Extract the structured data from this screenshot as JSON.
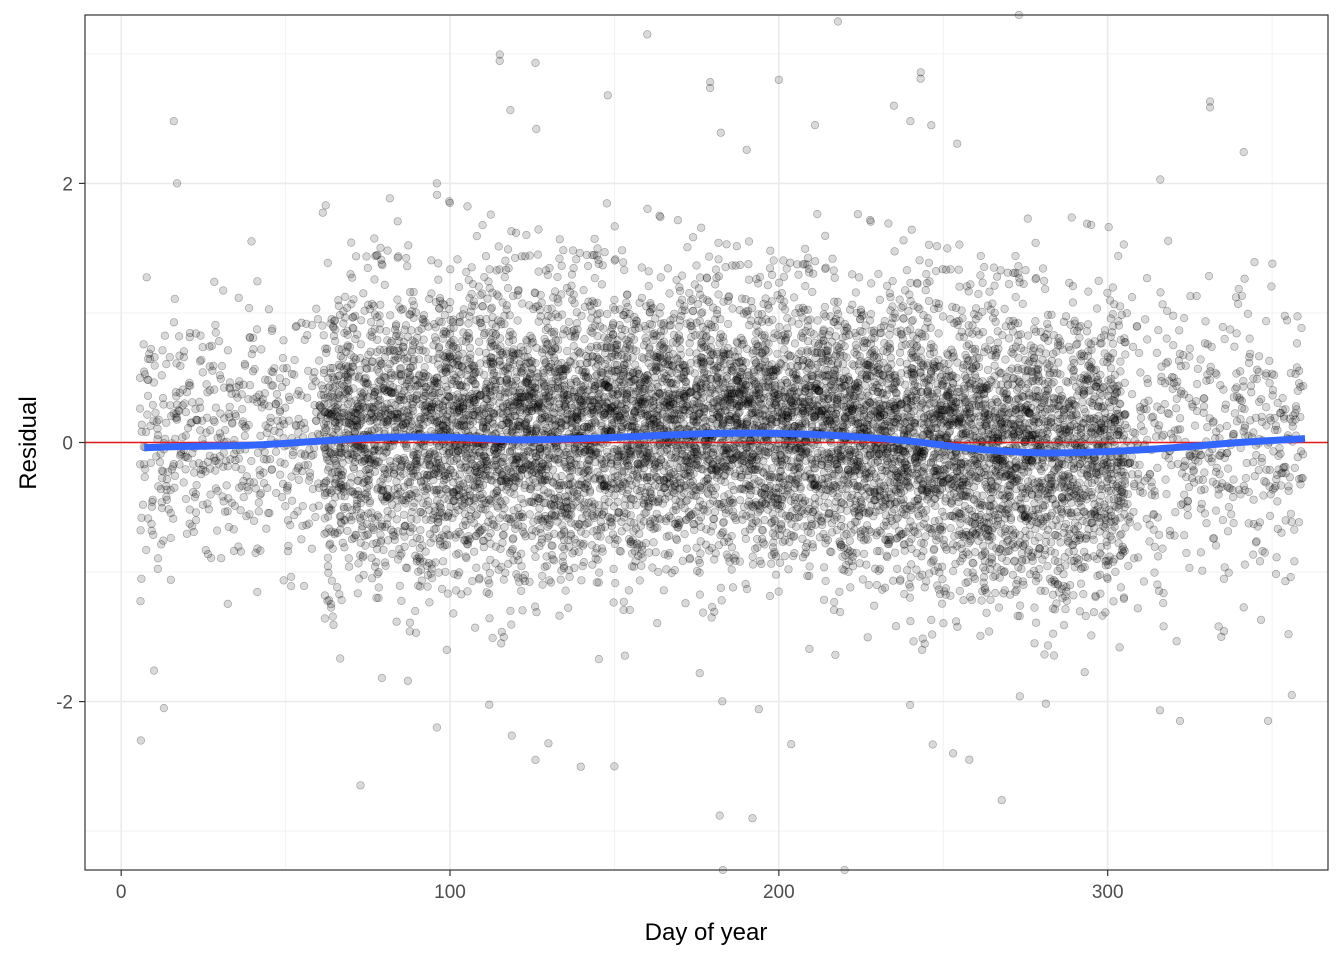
{
  "chart_data": {
    "type": "scatter",
    "title": "",
    "xlabel": "Day of year",
    "ylabel": "Residual",
    "xlim": [
      -11,
      367
    ],
    "ylim": [
      -3.3,
      3.3
    ],
    "x_ticks": [
      0,
      100,
      200,
      300
    ],
    "x_tick_labels": [
      "0",
      "100",
      "200",
      "300"
    ],
    "y_ticks": [
      -2,
      0,
      2
    ],
    "y_tick_labels": [
      "-2",
      "0",
      "2"
    ],
    "grid": true,
    "legend": "none",
    "point_color": "#000000",
    "point_opacity": 0.15,
    "reference_line": {
      "y": 0,
      "color": "#e41a1c"
    },
    "smooth": {
      "color": "#3366ff",
      "x": [
        7,
        20,
        40,
        60,
        80,
        100,
        120,
        140,
        160,
        180,
        200,
        220,
        240,
        260,
        280,
        300,
        320,
        340,
        360
      ],
      "y": [
        -0.04,
        -0.03,
        -0.02,
        0.01,
        0.04,
        0.04,
        0.02,
        0.03,
        0.05,
        0.07,
        0.07,
        0.05,
        0.01,
        -0.05,
        -0.08,
        -0.07,
        -0.04,
        0.0,
        0.03
      ]
    },
    "point_summary": {
      "x_range": [
        6,
        359
      ],
      "dense_x_range": [
        62,
        305
      ],
      "center_by_day": [
        {
          "x": 10,
          "mean": 0.0,
          "sd": 0.55
        },
        {
          "x": 40,
          "mean": 0.0,
          "sd": 0.5
        },
        {
          "x": 70,
          "mean": 0.05,
          "sd": 0.55
        },
        {
          "x": 100,
          "mean": 0.1,
          "sd": 0.55
        },
        {
          "x": 130,
          "mean": 0.1,
          "sd": 0.55
        },
        {
          "x": 160,
          "mean": 0.15,
          "sd": 0.5
        },
        {
          "x": 190,
          "mean": 0.15,
          "sd": 0.5
        },
        {
          "x": 220,
          "mean": 0.1,
          "sd": 0.5
        },
        {
          "x": 250,
          "mean": 0.0,
          "sd": 0.55
        },
        {
          "x": 280,
          "mean": -0.1,
          "sd": 0.55
        },
        {
          "x": 305,
          "mean": -0.05,
          "sd": 0.55
        },
        {
          "x": 330,
          "mean": 0.0,
          "sd": 0.5
        },
        {
          "x": 360,
          "mean": 0.0,
          "sd": 0.5
        }
      ],
      "notable_points": [
        {
          "x": 16,
          "y": 2.48
        },
        {
          "x": 17,
          "y": 2.0
        },
        {
          "x": 6,
          "y": -2.3
        },
        {
          "x": 13,
          "y": -2.05
        },
        {
          "x": 126,
          "y": 2.93
        },
        {
          "x": 160,
          "y": 3.15
        },
        {
          "x": 218,
          "y": 3.25
        },
        {
          "x": 256,
          "y": 3.35
        },
        {
          "x": 273,
          "y": 3.3
        },
        {
          "x": 200,
          "y": 2.8
        },
        {
          "x": 148,
          "y": 2.68
        },
        {
          "x": 182,
          "y": -2.88
        },
        {
          "x": 192,
          "y": -2.9
        },
        {
          "x": 183,
          "y": -3.3
        },
        {
          "x": 220,
          "y": -3.3
        },
        {
          "x": 96,
          "y": -2.2
        },
        {
          "x": 150,
          "y": -2.5
        },
        {
          "x": 126,
          "y": -2.45
        },
        {
          "x": 253,
          "y": -2.4
        },
        {
          "x": 356,
          "y": -1.95
        },
        {
          "x": 322,
          "y": -2.15
        },
        {
          "x": 355,
          "y": -1.48
        },
        {
          "x": 96,
          "y": 2.0
        },
        {
          "x": 316,
          "y": 2.03
        },
        {
          "x": 240,
          "y": 2.48
        },
        {
          "x": 211,
          "y": 2.45
        },
        {
          "x": 235,
          "y": 2.6
        }
      ]
    }
  }
}
